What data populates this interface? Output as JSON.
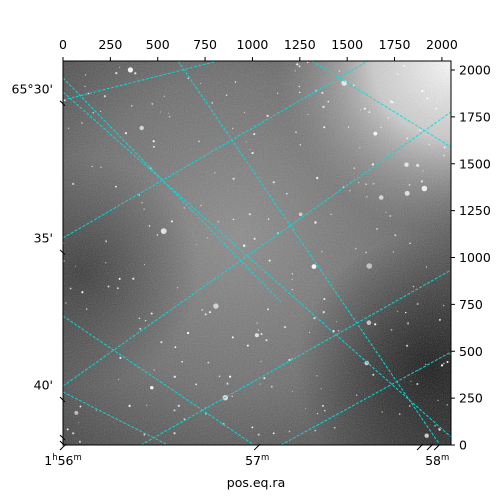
{
  "chart_data": {
    "type": "heatmap",
    "description_kind": "astronomical-image-with-wcs-grid",
    "colormap": "gray",
    "grid_color": "#00e0e0",
    "pixel_axes": {
      "top_ticks": [
        "0",
        "250",
        "500",
        "750",
        "1000",
        "1250",
        "1500",
        "1750",
        "2000"
      ],
      "top_values": [
        0,
        250,
        500,
        750,
        1000,
        1250,
        1500,
        1750,
        2000
      ],
      "right_ticks": [
        "0",
        "250",
        "500",
        "750",
        "1000",
        "1250",
        "1500",
        "1750",
        "2000"
      ],
      "right_values": [
        0,
        250,
        500,
        750,
        1000,
        1250,
        1500,
        1750,
        2000
      ],
      "xlim": [
        0,
        2048
      ],
      "ylim": [
        0,
        2048
      ]
    },
    "world_axes": {
      "ra_ticks": [
        {
          "main": "1",
          "sup1": "h",
          "mid": "56",
          "sup2": "m",
          "pixel": 0
        },
        {
          "main": "57",
          "sup1": "",
          "mid": "",
          "sup2": "m",
          "pixel": 1025
        },
        {
          "main": "58",
          "sup1": "",
          "mid": "",
          "sup2": "m",
          "pixel": 1975
        }
      ],
      "dec_ticks": [
        {
          "label": "65°30'",
          "pixel": 1900
        },
        {
          "label": "35'",
          "pixel": 1105
        },
        {
          "label": "40'",
          "pixel": 320
        }
      ],
      "xlabel": "pos.eq.ra"
    }
  }
}
